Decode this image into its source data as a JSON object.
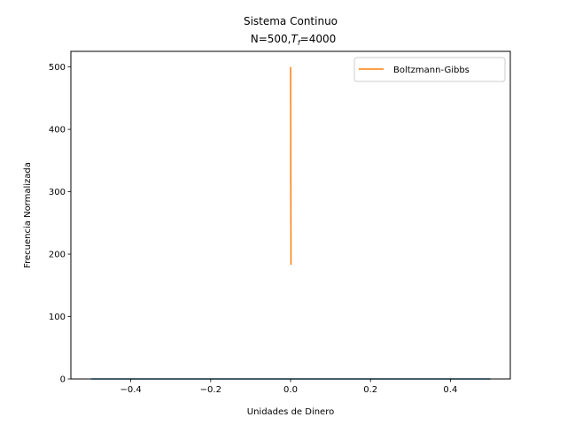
{
  "chart_data": {
    "type": "line",
    "title": "Sistema Continuo",
    "subtitle": "N=500,T_f=4000",
    "subtitle_parts": {
      "prefix": "N=500,",
      "var": "T",
      "var_sub": "f",
      "suffix": "=4000"
    },
    "xlabel": "Unidades de Dinero",
    "ylabel": "Frecuencia Normalizada",
    "xlim": [
      -0.55,
      0.55
    ],
    "ylim": [
      0,
      525
    ],
    "xticks": [
      -0.4,
      -0.2,
      0.0,
      0.2,
      0.4
    ],
    "xtick_labels": [
      "−0.4",
      "−0.2",
      "0.0",
      "0.2",
      "0.4"
    ],
    "yticks": [
      0,
      100,
      200,
      300,
      400,
      500
    ],
    "ytick_labels": [
      "0",
      "100",
      "200",
      "300",
      "400",
      "500"
    ],
    "grid": false,
    "legend": {
      "placement": "top-right",
      "entries": [
        "Boltzmann-Gibbs"
      ]
    },
    "series": [
      {
        "color": "#1f77b4",
        "x": [
          -0.5,
          0.5
        ],
        "y": [
          0,
          0
        ]
      },
      {
        "name": "Boltzmann-Gibbs",
        "color": "#ff7f0e",
        "x": [
          0.0,
          0.001
        ],
        "y": [
          500,
          183
        ]
      }
    ]
  }
}
